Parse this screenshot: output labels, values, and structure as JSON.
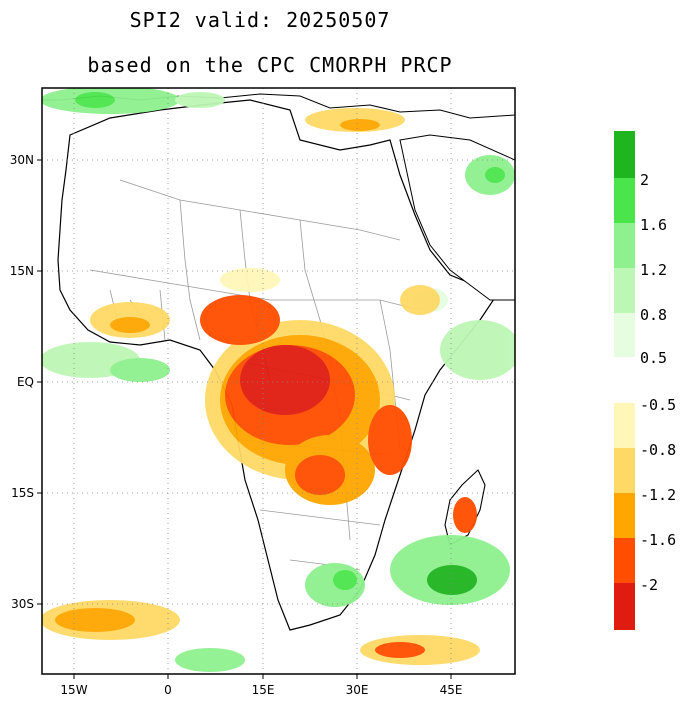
{
  "title": "SPI2   valid: 20250507",
  "subtitle": "based on the CPC CMORPH PRCP",
  "map": {
    "lon_ticks": [
      "15W",
      "0",
      "15E",
      "30E",
      "45E"
    ],
    "lat_ticks": [
      "30N",
      "15N",
      "EQ",
      "15S",
      "30S"
    ]
  },
  "legend_wet": {
    "labels": [
      "2",
      "1.6",
      "1.2",
      "0.8",
      "0.5"
    ],
    "colors": [
      "#1fb51f",
      "#4be54b",
      "#8ef08e",
      "#bdf7b6",
      "#e6fde0"
    ]
  },
  "legend_dry": {
    "labels": [
      "-0.5",
      "-0.8",
      "-1.2",
      "-1.6",
      "-2"
    ],
    "colors": [
      "#fff7b8",
      "#ffd966",
      "#ffa600",
      "#ff4e00",
      "#e01b10"
    ]
  }
}
